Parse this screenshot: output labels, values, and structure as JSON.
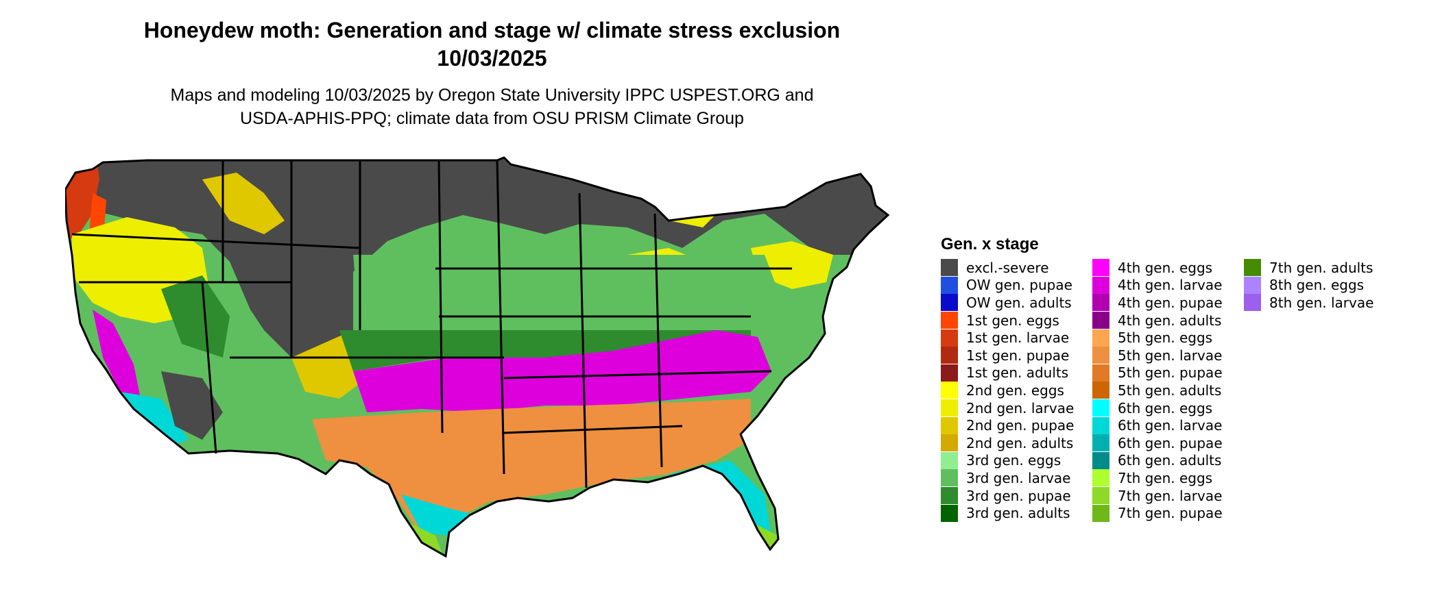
{
  "title": {
    "line1": "Honeydew moth: Generation and stage w/ climate stress exclusion",
    "line2": "10/03/2025"
  },
  "subtitle": {
    "line1": "Maps and modeling 10/03/2025 by Oregon State University IPPC USPEST.ORG and",
    "line2": "USDA-APHIS-PPQ; climate data from OSU PRISM Climate Group"
  },
  "map": {
    "region": "Contiguous United States",
    "border_color": "#000000"
  },
  "legend": {
    "title": "Gen. x stage",
    "items": [
      {
        "label": "excl.-severe",
        "color": "#4a4a4a"
      },
      {
        "label": "OW gen. pupae",
        "color": "#1f4fe0"
      },
      {
        "label": "OW gen. adults",
        "color": "#0a0acd"
      },
      {
        "label": "1st gen. eggs",
        "color": "#ff4500"
      },
      {
        "label": "1st gen. larvae",
        "color": "#d53a10"
      },
      {
        "label": "1st gen. pupae",
        "color": "#b02a12"
      },
      {
        "label": "1st gen. adults",
        "color": "#8b1a1a"
      },
      {
        "label": "2nd gen. eggs",
        "color": "#ffff00"
      },
      {
        "label": "2nd gen. larvae",
        "color": "#eeee00"
      },
      {
        "label": "2nd gen. pupae",
        "color": "#e0c800"
      },
      {
        "label": "2nd gen. adults",
        "color": "#d4aa00"
      },
      {
        "label": "3rd gen. eggs",
        "color": "#90ee90"
      },
      {
        "label": "3rd gen. larvae",
        "color": "#5fbf5f"
      },
      {
        "label": "3rd gen. pupae",
        "color": "#2e8b2e"
      },
      {
        "label": "3rd gen. adults",
        "color": "#006400"
      },
      {
        "label": "4th gen. eggs",
        "color": "#ff00ff"
      },
      {
        "label": "4th gen. larvae",
        "color": "#dd00dd"
      },
      {
        "label": "4th gen. pupae",
        "color": "#b000b0"
      },
      {
        "label": "4th gen. adults",
        "color": "#8b008b"
      },
      {
        "label": "5th gen. eggs",
        "color": "#ffa54f"
      },
      {
        "label": "5th gen. larvae",
        "color": "#ee9040"
      },
      {
        "label": "5th gen. pupae",
        "color": "#e07a25"
      },
      {
        "label": "5th gen. adults",
        "color": "#cd6600"
      },
      {
        "label": "6th gen. eggs",
        "color": "#00ffff"
      },
      {
        "label": "6th gen. larvae",
        "color": "#00d8d8"
      },
      {
        "label": "6th gen. pupae",
        "color": "#00b0b0"
      },
      {
        "label": "6th gen. adults",
        "color": "#008b8b"
      },
      {
        "label": "7th gen. eggs",
        "color": "#adff2f"
      },
      {
        "label": "7th gen. larvae",
        "color": "#8ed925"
      },
      {
        "label": "7th gen. pupae",
        "color": "#6eb818"
      },
      {
        "label": "7th gen. adults",
        "color": "#458b00"
      },
      {
        "label": "8th gen. eggs",
        "color": "#ab82ff"
      },
      {
        "label": "8th gen. larvae",
        "color": "#9b60ee"
      }
    ]
  }
}
